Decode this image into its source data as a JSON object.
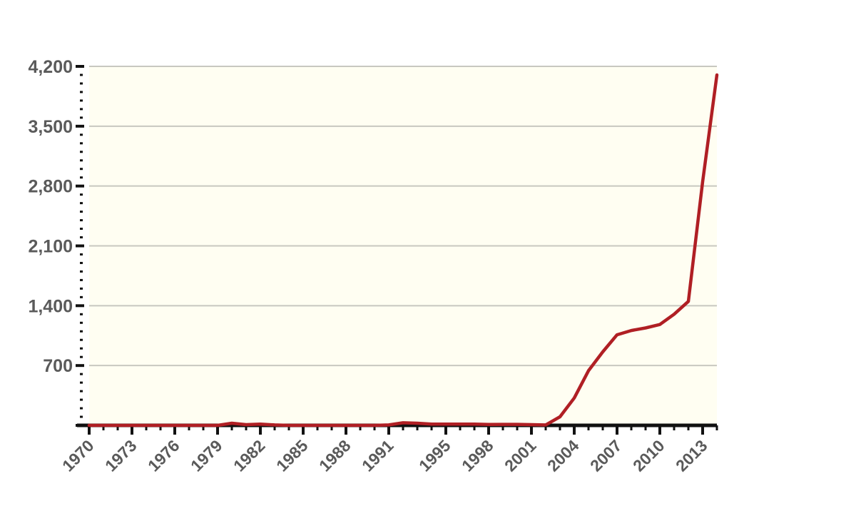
{
  "chart_data": {
    "type": "line",
    "title": "",
    "xlabel": "",
    "ylabel": "",
    "ylim": [
      0,
      4200
    ],
    "yticks": [
      700,
      1400,
      2100,
      2800,
      3500,
      4200
    ],
    "ytick_labels": [
      "700",
      "1,400",
      "2,100",
      "2,800",
      "3,500",
      "4,200"
    ],
    "xlim": [
      1970,
      2014
    ],
    "xticks": [
      1970,
      1973,
      1976,
      1979,
      1982,
      1985,
      1988,
      1991,
      1995,
      1998,
      2001,
      2004,
      2007,
      2010,
      2013
    ],
    "xtick_labels": [
      "1970",
      "1973",
      "1976",
      "1979",
      "1982",
      "1985",
      "1988",
      "1991",
      "1995",
      "1998",
      "2001",
      "2004",
      "2007",
      "2010",
      "2013"
    ],
    "grid": true,
    "colors": {
      "line": "#b01f24",
      "plot_background": "#fffef2",
      "grid": "#c8c8c0",
      "axis": "#111111",
      "tick_label": "#5a5a5a"
    },
    "series": [
      {
        "name": "",
        "x": [
          1970,
          1971,
          1972,
          1973,
          1974,
          1975,
          1976,
          1977,
          1978,
          1979,
          1980,
          1981,
          1982,
          1983,
          1984,
          1985,
          1986,
          1987,
          1988,
          1989,
          1990,
          1991,
          1992,
          1993,
          1994,
          1995,
          1996,
          1997,
          1998,
          1999,
          2000,
          2001,
          2002,
          2003,
          2004,
          2005,
          2006,
          2007,
          2008,
          2009,
          2010,
          2011,
          2012,
          2013,
          2014
        ],
        "y": [
          0,
          0,
          0,
          0,
          0,
          0,
          0,
          0,
          0,
          0,
          25,
          8,
          15,
          5,
          0,
          0,
          0,
          0,
          0,
          0,
          0,
          5,
          30,
          25,
          15,
          15,
          15,
          15,
          10,
          12,
          12,
          8,
          5,
          100,
          320,
          640,
          860,
          1060,
          1110,
          1140,
          1180,
          1300,
          1450,
          2850,
          4100
        ]
      }
    ]
  }
}
